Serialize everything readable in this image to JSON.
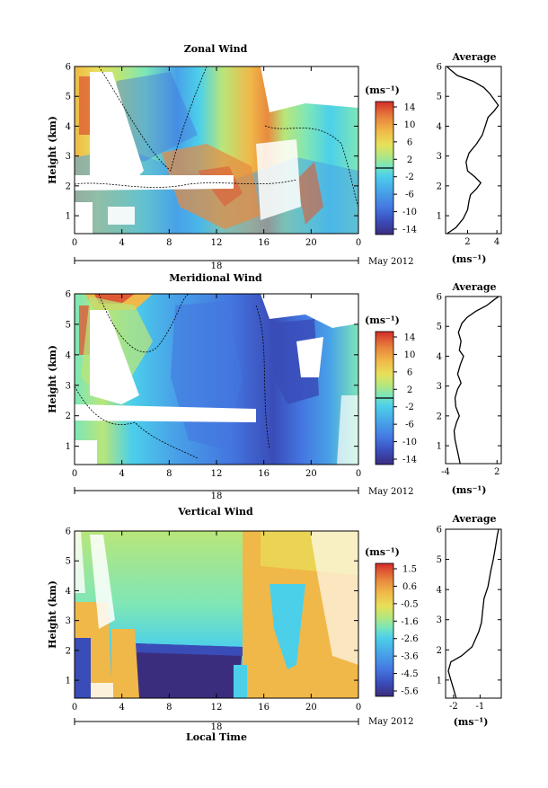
{
  "date_label": "May 2012",
  "local_time_label": "Local Time",
  "colors": {
    "scale": [
      "#3b2d7d",
      "#3a4cb8",
      "#4476e0",
      "#48a2e8",
      "#4cd0ea",
      "#7de6b8",
      "#b8e67a",
      "#e8e05a",
      "#f0b848",
      "#e88a3e",
      "#de5a34",
      "#d22a2a"
    ],
    "missing": "#ffffff"
  },
  "chart_data": [
    {
      "type": "heatmap",
      "title": "Zonal Wind",
      "ylabel": "Height (km)",
      "ylim": [
        0.4,
        6
      ],
      "yticks": [
        1,
        2,
        3,
        4,
        5,
        6
      ],
      "xticks": [
        "0",
        "4",
        "8",
        "12",
        "16",
        "20",
        "0"
      ],
      "x_day_label": "18",
      "unit": "(ms⁻¹)",
      "colorbar_ticks": [
        "14",
        "10",
        "6",
        "2",
        "-2",
        "-6",
        "-10",
        "-14"
      ],
      "contour": "0 ms⁻¹ contour (dashed)",
      "average": {
        "title": "Average",
        "xlabel": "(ms⁻¹)",
        "xticks": [
          "2",
          "4"
        ],
        "xlim": [
          0.5,
          4.3
        ],
        "yticks": [
          1,
          2,
          3,
          4,
          5,
          6
        ],
        "ylim": [
          0.4,
          6
        ],
        "profile": [
          [
            0.6,
            0.4
          ],
          [
            1.2,
            0.6
          ],
          [
            1.7,
            0.9
          ],
          [
            2.0,
            1.2
          ],
          [
            2.1,
            1.5
          ],
          [
            2.2,
            1.7
          ],
          [
            2.6,
            1.9
          ],
          [
            2.9,
            2.1
          ],
          [
            2.5,
            2.3
          ],
          [
            2.0,
            2.5
          ],
          [
            1.9,
            2.8
          ],
          [
            2.1,
            3.1
          ],
          [
            2.6,
            3.4
          ],
          [
            3.0,
            3.7
          ],
          [
            3.2,
            4.0
          ],
          [
            3.4,
            4.3
          ],
          [
            3.8,
            4.5
          ],
          [
            4.1,
            4.7
          ],
          [
            3.8,
            4.9
          ],
          [
            3.5,
            5.1
          ],
          [
            3.1,
            5.3
          ],
          [
            2.4,
            5.5
          ],
          [
            1.3,
            5.7
          ],
          [
            0.8,
            5.9
          ],
          [
            0.6,
            6.0
          ]
        ]
      }
    },
    {
      "type": "heatmap",
      "title": "Meridional Wind",
      "ylabel": "Height (km)",
      "ylim": [
        0.4,
        6
      ],
      "yticks": [
        1,
        2,
        3,
        4,
        5,
        6
      ],
      "xticks": [
        "0",
        "4",
        "8",
        "12",
        "16",
        "20",
        "0"
      ],
      "x_day_label": "18",
      "unit": "(ms⁻¹)",
      "colorbar_ticks": [
        "14",
        "10",
        "6",
        "2",
        "-2",
        "-6",
        "-10",
        "-14"
      ],
      "contour": "0 ms⁻¹ contour (dashed)",
      "average": {
        "title": "Average",
        "xlabel": "(ms⁻¹)",
        "xticks": [
          "-4",
          "2"
        ],
        "xlim": [
          -4,
          2.5
        ],
        "yticks": [
          1,
          2,
          3,
          4,
          5,
          6
        ],
        "ylim": [
          0.4,
          6
        ],
        "profile": [
          [
            -2.3,
            0.4
          ],
          [
            -2.6,
            0.8
          ],
          [
            -2.9,
            1.2
          ],
          [
            -3.0,
            1.5
          ],
          [
            -2.7,
            1.8
          ],
          [
            -2.4,
            2.0
          ],
          [
            -2.8,
            2.3
          ],
          [
            -2.9,
            2.6
          ],
          [
            -2.6,
            2.9
          ],
          [
            -2.2,
            3.1
          ],
          [
            -2.6,
            3.4
          ],
          [
            -2.3,
            3.7
          ],
          [
            -1.9,
            4.0
          ],
          [
            -2.4,
            4.2
          ],
          [
            -2.2,
            4.5
          ],
          [
            -2.5,
            4.8
          ],
          [
            -2.1,
            5.1
          ],
          [
            -1.5,
            5.3
          ],
          [
            -0.5,
            5.5
          ],
          [
            0.8,
            5.7
          ],
          [
            1.7,
            5.9
          ],
          [
            2.2,
            6.0
          ]
        ]
      }
    },
    {
      "type": "heatmap",
      "title": "Vertical Wind",
      "ylabel": "Height (km)",
      "xlabel": "Local Time",
      "ylim": [
        0.4,
        6
      ],
      "yticks": [
        1,
        2,
        3,
        4,
        5,
        6
      ],
      "xticks": [
        "0",
        "4",
        "8",
        "12",
        "16",
        "20",
        "0"
      ],
      "x_day_label": "18",
      "unit": "(ms⁻¹)",
      "colorbar_ticks": [
        "1.5",
        "0.6",
        "-0.5",
        "-1.6",
        "-2.6",
        "-3.6",
        "-4.5",
        "-5.6"
      ],
      "average": {
        "title": "Average",
        "xlabel": "(ms⁻¹)",
        "xticks": [
          "-2",
          "-1"
        ],
        "xlim": [
          -2.3,
          -0.2
        ],
        "yticks": [
          1,
          2,
          3,
          4,
          5,
          6
        ],
        "ylim": [
          0.4,
          6
        ],
        "profile": [
          [
            -1.9,
            0.4
          ],
          [
            -2.0,
            0.7
          ],
          [
            -2.1,
            1.0
          ],
          [
            -2.2,
            1.3
          ],
          [
            -2.1,
            1.6
          ],
          [
            -1.7,
            1.8
          ],
          [
            -1.3,
            2.1
          ],
          [
            -1.05,
            2.6
          ],
          [
            -0.95,
            2.9
          ],
          [
            -0.9,
            3.3
          ],
          [
            -0.85,
            3.7
          ],
          [
            -0.7,
            4.1
          ],
          [
            -0.6,
            4.6
          ],
          [
            -0.5,
            5.0
          ],
          [
            -0.42,
            5.4
          ],
          [
            -0.35,
            5.8
          ],
          [
            -0.3,
            6.0
          ]
        ]
      }
    }
  ]
}
